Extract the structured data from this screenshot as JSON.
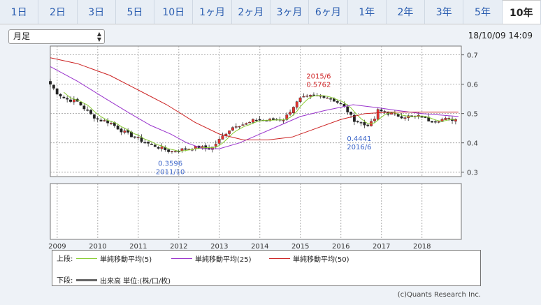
{
  "tabs": [
    {
      "label": "1日"
    },
    {
      "label": "2日"
    },
    {
      "label": "3日"
    },
    {
      "label": "5日"
    },
    {
      "label": "10日"
    },
    {
      "label": "1ヶ月"
    },
    {
      "label": "2ヶ月"
    },
    {
      "label": "3ヶ月"
    },
    {
      "label": "6ヶ月"
    },
    {
      "label": "1年"
    },
    {
      "label": "2年"
    },
    {
      "label": "3年"
    },
    {
      "label": "5年"
    },
    {
      "label": "10年"
    }
  ],
  "active_tab": "10年",
  "period_select": {
    "value": "月足"
  },
  "timestamp": "18/10/09 14:09",
  "legend": {
    "upper_label": "上段:",
    "ma5": "単純移動平均(5)",
    "ma25": "単純移動平均(25)",
    "ma50": "単純移動平均(50)",
    "lower_label": "下段:",
    "volume": "出来高 単位:(株/口/枚)"
  },
  "colors": {
    "up": "#e5322e",
    "down": "#222222",
    "ma5": "#88cc33",
    "ma25": "#9933cc",
    "ma50": "#cc2222",
    "high_note": "#d0282a",
    "low_note": "#3a64c8"
  },
  "copyright": "(c)Quants Research Inc.",
  "chart_data": {
    "type": "candlestick",
    "y_ticks": [
      "0.7",
      "0.6",
      "0.5",
      "0.4",
      "0.3"
    ],
    "ylim": [
      0.285,
      0.73
    ],
    "x_ticks": [
      "2009",
      "2010",
      "2011",
      "2012",
      "2013",
      "2014",
      "2015",
      "2016",
      "2017",
      "2018"
    ],
    "start_year": 2008.83,
    "years_shown": [
      2008.83,
      2018.97
    ],
    "annotations": {
      "high": {
        "date": "2015/6",
        "value": "0.5762",
        "x": 2015.45,
        "y": 0.5762
      },
      "low1": {
        "date": "2011/10",
        "value": "0.3596",
        "x": 2011.79,
        "y": 0.3596
      },
      "low2": {
        "date": "2016/6",
        "value": "0.4441",
        "x": 2016.45,
        "y": 0.4441
      }
    },
    "anchors": [
      [
        2008.83,
        0.6
      ],
      [
        2009.0,
        0.57
      ],
      [
        2009.2,
        0.55
      ],
      [
        2009.5,
        0.54
      ],
      [
        2009.8,
        0.5
      ],
      [
        2010.0,
        0.48
      ],
      [
        2010.3,
        0.47
      ],
      [
        2010.6,
        0.44
      ],
      [
        2010.9,
        0.42
      ],
      [
        2011.2,
        0.4
      ],
      [
        2011.5,
        0.385
      ],
      [
        2011.8,
        0.37
      ],
      [
        2012.2,
        0.38
      ],
      [
        2012.5,
        0.385
      ],
      [
        2012.8,
        0.38
      ],
      [
        2013.0,
        0.41
      ],
      [
        2013.2,
        0.44
      ],
      [
        2013.4,
        0.46
      ],
      [
        2013.7,
        0.465
      ],
      [
        2013.9,
        0.48
      ],
      [
        2014.1,
        0.475
      ],
      [
        2014.4,
        0.48
      ],
      [
        2014.6,
        0.48
      ],
      [
        2014.8,
        0.52
      ],
      [
        2015.0,
        0.55
      ],
      [
        2015.3,
        0.56
      ],
      [
        2015.6,
        0.56
      ],
      [
        2015.9,
        0.54
      ],
      [
        2016.1,
        0.52
      ],
      [
        2016.3,
        0.48
      ],
      [
        2016.6,
        0.46
      ],
      [
        2016.8,
        0.47
      ],
      [
        2016.9,
        0.51
      ],
      [
        2017.2,
        0.5
      ],
      [
        2017.5,
        0.49
      ],
      [
        2017.8,
        0.49
      ],
      [
        2018.0,
        0.49
      ],
      [
        2018.2,
        0.475
      ],
      [
        2018.5,
        0.48
      ],
      [
        2018.9,
        0.48
      ]
    ],
    "ma25": [
      [
        2008.83,
        0.66
      ],
      [
        2009.5,
        0.61
      ],
      [
        2010.2,
        0.55
      ],
      [
        2010.8,
        0.5
      ],
      [
        2011.3,
        0.46
      ],
      [
        2011.8,
        0.43
      ],
      [
        2012.2,
        0.4
      ],
      [
        2012.6,
        0.38
      ],
      [
        2013.0,
        0.38
      ],
      [
        2013.5,
        0.4
      ],
      [
        2014.0,
        0.43
      ],
      [
        2014.5,
        0.46
      ],
      [
        2015.0,
        0.49
      ],
      [
        2015.6,
        0.51
      ],
      [
        2016.3,
        0.53
      ],
      [
        2016.9,
        0.52
      ],
      [
        2017.4,
        0.51
      ],
      [
        2018.0,
        0.5
      ],
      [
        2018.9,
        0.49
      ]
    ],
    "ma50": [
      [
        2008.83,
        0.69
      ],
      [
        2009.5,
        0.67
      ],
      [
        2010.3,
        0.63
      ],
      [
        2011.0,
        0.58
      ],
      [
        2011.7,
        0.53
      ],
      [
        2012.4,
        0.47
      ],
      [
        2013.0,
        0.43
      ],
      [
        2013.6,
        0.41
      ],
      [
        2014.2,
        0.41
      ],
      [
        2014.8,
        0.42
      ],
      [
        2015.4,
        0.45
      ],
      [
        2016.0,
        0.48
      ],
      [
        2016.6,
        0.5
      ],
      [
        2017.2,
        0.505
      ],
      [
        2018.0,
        0.505
      ],
      [
        2018.9,
        0.505
      ]
    ]
  }
}
